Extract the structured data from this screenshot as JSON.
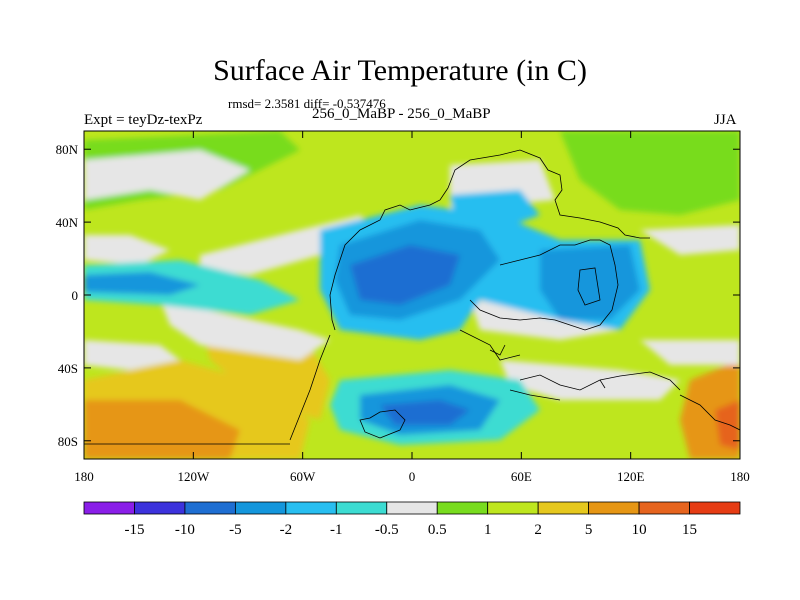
{
  "title": "Surface Air Temperature (in C)",
  "subtitle": "rmsd= 2.3581 diff= -0.537476",
  "left_label": "Expt = teyDz-texPz",
  "center_label": "256_0_MaBP - 256_0_MaBP",
  "right_label": "JJA",
  "map": {
    "lon_range": [
      -180,
      180
    ],
    "lat_range": [
      -90,
      90
    ],
    "lon_ticks": [
      {
        "value": -180,
        "label": "180"
      },
      {
        "value": -120,
        "label": "120W"
      },
      {
        "value": -60,
        "label": "60W"
      },
      {
        "value": 0,
        "label": "0"
      },
      {
        "value": 60,
        "label": "60E"
      },
      {
        "value": 120,
        "label": "120E"
      },
      {
        "value": 180,
        "label": "180"
      }
    ],
    "lat_ticks": [
      {
        "value": 80,
        "label": "80N"
      },
      {
        "value": 40,
        "label": "40N"
      },
      {
        "value": 0,
        "label": "0"
      },
      {
        "value": -40,
        "label": "40S"
      },
      {
        "value": -80,
        "label": "80S"
      }
    ]
  },
  "colorbar": {
    "colors": [
      "#8a1ee8",
      "#3c32dc",
      "#1e6ed2",
      "#1496dc",
      "#28bef0",
      "#3cdcd2",
      "#e6e6e6",
      "#78dc1e",
      "#bee61e",
      "#e6c81e",
      "#e69614",
      "#e6641e",
      "#e63c14"
    ],
    "labels": [
      "-15",
      "-10",
      "-5",
      "-2",
      "-1",
      "-0.5",
      "0.5",
      "1",
      "2",
      "5",
      "10",
      "15"
    ]
  }
}
